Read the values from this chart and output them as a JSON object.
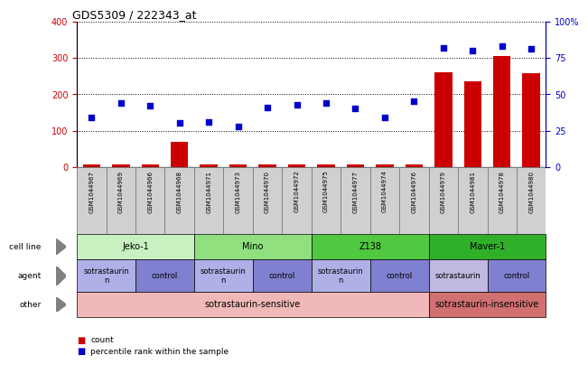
{
  "title": "GDS5309 / 222343_at",
  "samples": [
    "GSM1044967",
    "GSM1044969",
    "GSM1044966",
    "GSM1044968",
    "GSM1044971",
    "GSM1044973",
    "GSM1044970",
    "GSM1044972",
    "GSM1044975",
    "GSM1044977",
    "GSM1044974",
    "GSM1044976",
    "GSM1044979",
    "GSM1044981",
    "GSM1044978",
    "GSM1044980"
  ],
  "counts": [
    6,
    6,
    6,
    70,
    6,
    6,
    6,
    6,
    6,
    6,
    6,
    6,
    260,
    235,
    305,
    258
  ],
  "percentiles": [
    34,
    44,
    42,
    30,
    31,
    28,
    41,
    43,
    44,
    40,
    34,
    45,
    82,
    80,
    83,
    81
  ],
  "cell_lines": [
    {
      "label": "Jeko-1",
      "start": 0,
      "end": 4,
      "color": "#c8f0c0"
    },
    {
      "label": "Mino",
      "start": 4,
      "end": 8,
      "color": "#90e080"
    },
    {
      "label": "Z138",
      "start": 8,
      "end": 12,
      "color": "#50c840"
    },
    {
      "label": "Maver-1",
      "start": 12,
      "end": 16,
      "color": "#30b028"
    }
  ],
  "agents": [
    {
      "label": "sotrastaurin\nn",
      "start": 0,
      "end": 2,
      "color": "#b0b0e8"
    },
    {
      "label": "control",
      "start": 2,
      "end": 4,
      "color": "#8080d0"
    },
    {
      "label": "sotrastaurin\nn",
      "start": 4,
      "end": 6,
      "color": "#b0b0e8"
    },
    {
      "label": "control",
      "start": 6,
      "end": 8,
      "color": "#8080d0"
    },
    {
      "label": "sotrastaurin\nn",
      "start": 8,
      "end": 10,
      "color": "#b0b0e8"
    },
    {
      "label": "control",
      "start": 10,
      "end": 12,
      "color": "#8080d0"
    },
    {
      "label": "sotrastaurin",
      "start": 12,
      "end": 14,
      "color": "#c0b8e0"
    },
    {
      "label": "control",
      "start": 14,
      "end": 16,
      "color": "#8080d0"
    }
  ],
  "others": [
    {
      "label": "sotrastaurin-sensitive",
      "start": 0,
      "end": 12,
      "color": "#f0b8b8"
    },
    {
      "label": "sotrastaurin-insensitive",
      "start": 12,
      "end": 16,
      "color": "#d07070"
    }
  ],
  "row_labels": [
    "cell line",
    "agent",
    "other"
  ],
  "ylim_left": [
    0,
    400
  ],
  "yticks_left": [
    0,
    100,
    200,
    300,
    400
  ],
  "ylim_right": [
    0,
    100
  ],
  "yticks_right": [
    0,
    25,
    50,
    75,
    100
  ],
  "bar_color": "#cc0000",
  "dot_color": "#0000cc",
  "bg_color": "#ffffff",
  "left_tick_color": "#cc0000",
  "right_tick_color": "#0000cc",
  "sample_box_color": "#d0d0d0",
  "sample_box_edge": "#808080"
}
